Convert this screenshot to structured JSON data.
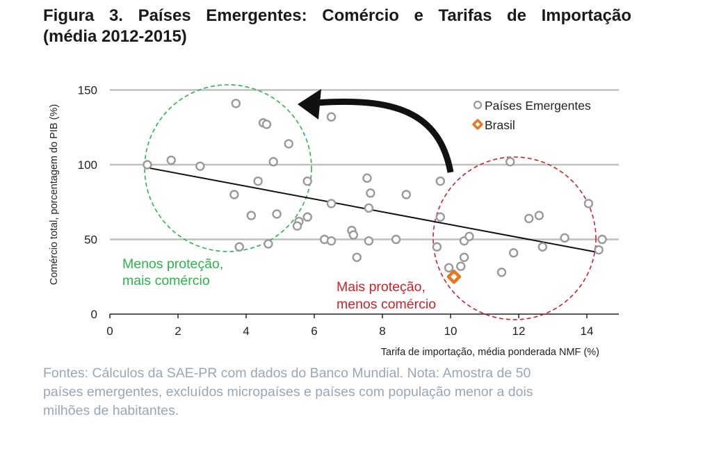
{
  "title": {
    "line1": "Figura 3. Países Emergentes: Comércio e Tarifas de Importação",
    "line2": "(média 2012-2015)"
  },
  "note": {
    "line1": "Fontes: Cálculos da SAE-PR com dados do Banco Mundial. Nota: Amostra de 50",
    "line2": "países emergentes, excluídos micropaíses e países com população menor a dois",
    "line3": "milhões de habitantes."
  },
  "colors": {
    "points": "#999999",
    "brasil": "#e87722",
    "trend": "#111111",
    "green": "#2db34a",
    "red": "#cc2229",
    "grid": "#bfbfbf"
  },
  "chart_data": {
    "type": "scatter",
    "xlabel": "Tarifa de importação, média ponderada NMF (%)",
    "ylabel": "Comércio total, porcentagem do PIB (%)",
    "xlim": [
      0,
      15
    ],
    "ylim": [
      0,
      150
    ],
    "xticks": [
      "0",
      "2",
      "4",
      "6",
      "8",
      "10",
      "12",
      "14"
    ],
    "yticks": [
      "0",
      "50",
      "100",
      "150"
    ],
    "grid": "horizontal",
    "legend_position": "top-right",
    "legend": [
      "Países Emergentes",
      "Brasil"
    ],
    "series": [
      {
        "name": "Países Emergentes",
        "marker": "circle",
        "points": [
          [
            1.1,
            100
          ],
          [
            1.8,
            103
          ],
          [
            2.65,
            99
          ],
          [
            3.7,
            141
          ],
          [
            4.5,
            128
          ],
          [
            4.6,
            127
          ],
          [
            5.25,
            114
          ],
          [
            4.8,
            102
          ],
          [
            3.65,
            80
          ],
          [
            4.35,
            89
          ],
          [
            4.15,
            66
          ],
          [
            4.9,
            67
          ],
          [
            5.55,
            62
          ],
          [
            5.5,
            59
          ],
          [
            5.8,
            65
          ],
          [
            5.8,
            89
          ],
          [
            3.8,
            45
          ],
          [
            4.65,
            47
          ],
          [
            6.5,
            132
          ],
          [
            6.5,
            74
          ],
          [
            6.3,
            50
          ],
          [
            6.5,
            49
          ],
          [
            7.1,
            56
          ],
          [
            7.15,
            53
          ],
          [
            7.25,
            38
          ],
          [
            7.55,
            91
          ],
          [
            7.65,
            81
          ],
          [
            7.6,
            71
          ],
          [
            7.6,
            49
          ],
          [
            8.4,
            50
          ],
          [
            8.7,
            80
          ],
          [
            9.6,
            45
          ],
          [
            9.7,
            89
          ],
          [
            9.7,
            65
          ],
          [
            9.95,
            31
          ],
          [
            10.3,
            32
          ],
          [
            10.4,
            38
          ],
          [
            10.4,
            49
          ],
          [
            10.55,
            52
          ],
          [
            11.5,
            28
          ],
          [
            11.75,
            102
          ],
          [
            11.85,
            41
          ],
          [
            12.3,
            64
          ],
          [
            12.6,
            66
          ],
          [
            12.7,
            45
          ],
          [
            13.35,
            51
          ],
          [
            14.05,
            74
          ],
          [
            14.35,
            43
          ],
          [
            14.45,
            50
          ]
        ]
      },
      {
        "name": "Brasil",
        "marker": "diamond",
        "points": [
          [
            10.1,
            25
          ]
        ]
      }
    ],
    "trendline": {
      "x": [
        1.1,
        14.4
      ],
      "y": [
        98,
        41
      ]
    },
    "annotations": [
      {
        "id": "green",
        "lines": [
          "Menos proteção,",
          "mais comércio"
        ]
      },
      {
        "id": "red",
        "lines": [
          "Mais proteção,",
          "menos comércio"
        ]
      }
    ]
  }
}
